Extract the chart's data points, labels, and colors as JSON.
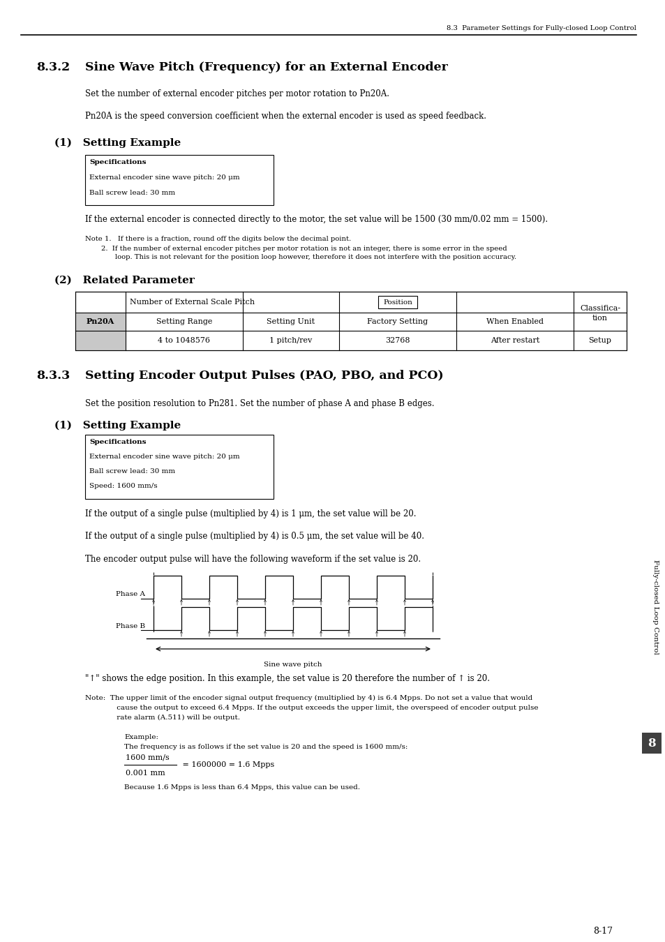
{
  "header_text": "8.3  Parameter Settings for Fully-closed Loop Control",
  "section_832_num": "8.3.2",
  "section_832_title": "Sine Wave Pitch (Frequency) for an External Encoder",
  "para1": "Set the number of external encoder pitches per motor rotation to Pn20A.",
  "para2": "Pn20A is the speed conversion coefficient when the external encoder is used as speed feedback.",
  "sub1_1": "(1)   Setting Example",
  "spec_box1": [
    "Specifications",
    "External encoder sine wave pitch: 20 μm",
    "Ball screw lead: 30 mm"
  ],
  "para3": "If the external encoder is connected directly to the motor, the set value will be 1500 (30 mm/0.02 mm = 1500).",
  "note1_1": "Note 1.   If there is a fraction, round off the digits below the decimal point.",
  "note1_2": "       2.   If the number of external encoder pitches per motor rotation is not an integer, there is some error in the speed",
  "note1_3": "              loop. This is not relevant for the position loop however, therefore it does not interfere with the position accuracy.",
  "sub1_2": "(2)   Related Parameter",
  "table_header1": "Number of External Scale Pitch",
  "table_position_label": "Position",
  "table_classifica": "Classifica-",
  "table_tion": "tion",
  "table_pn20a": "Pn20A",
  "table_setting_range_label": "Setting Range",
  "table_setting_unit_label": "Setting Unit",
  "table_factory_setting_label": "Factory Setting",
  "table_when_enabled_label": "When Enabled",
  "table_setting_range": "4 to 1048576",
  "table_setting_unit": "1 pitch/rev",
  "table_factory_setting": "32768",
  "table_when_enabled": "After restart",
  "table_classification": "Setup",
  "section_833_num": "8.3.3",
  "section_833_title": "Setting Encoder Output Pulses (PAO, PBO, and PCO)",
  "para4": "Set the position resolution to Pn281. Set the number of phase A and phase B edges.",
  "sub2_1": "(1)   Setting Example",
  "spec_box2": [
    "Specifications",
    "External encoder sine wave pitch: 20 μm",
    "Ball screw lead: 30 mm",
    "Speed: 1600 mm/s"
  ],
  "para5": "If the output of a single pulse (multiplied by 4) is 1 μm, the set value will be 20.",
  "para6": "If the output of a single pulse (multiplied by 4) is 0.5 μm, the set value will be 40.",
  "para7": "The encoder output pulse will have the following waveform if the set value is 20.",
  "phase_a_label": "Phase A",
  "phase_b_label": "Phase B",
  "sine_wave_pitch_label": "Sine wave pitch",
  "para8": "\"↑\" shows the edge position. In this example, the set value is 20 therefore the number of ↑ is 20.",
  "note2_1": "Note:  The upper limit of the encoder signal output frequency (multiplied by 4) is 6.4 Mpps. Do not set a value that would",
  "note2_2": "         cause the output to exceed 6.4 Mpps. If the output exceeds the upper limit, the overspeed of encoder output pulse",
  "note2_3": "         rate alarm (A.511) will be output.",
  "example_label": "Example:",
  "example_text": "The frequency is as follows if the set value is 20 and the speed is 1600 mm/s:",
  "fraction_num": "1600 mm/s",
  "fraction_den": "0.001 mm",
  "fraction_result": " = 1600000 = 1.6 Mpps",
  "para9": "Because 1.6 Mpps is less than 6.4 Mpps, this value can be used.",
  "sidebar_text": "Fully-closed Loop Control",
  "sidebar_num": "8",
  "page_num": "8-17",
  "bg_color": "#ffffff",
  "text_color": "#000000"
}
